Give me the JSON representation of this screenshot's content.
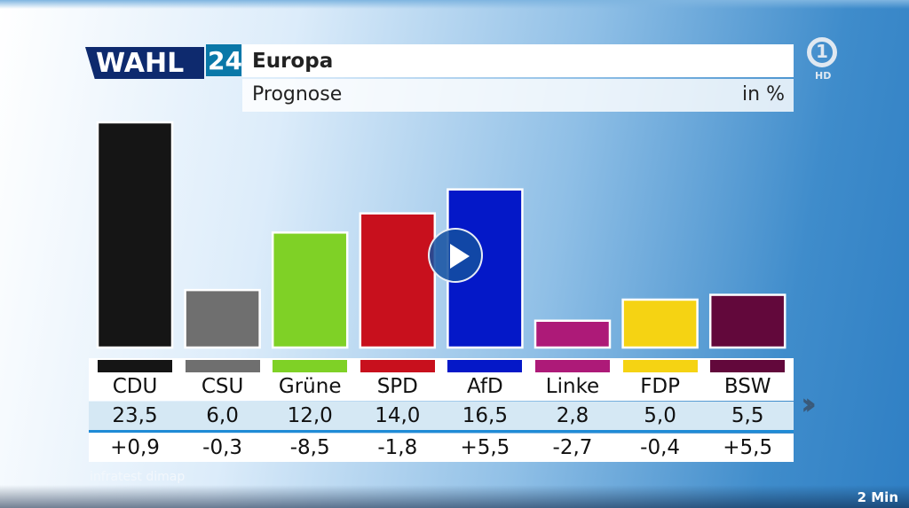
{
  "header": {
    "logo_text": "WAHL",
    "logo_number": "24",
    "title": "Europa",
    "subtitle": "Prognose",
    "unit": "in %"
  },
  "station": {
    "logo": "1",
    "hd": "HD"
  },
  "source": "infratest dimap",
  "video": {
    "duration": "2 Min",
    "play_icon": "play-icon",
    "next_icon": "double-chevron-right-icon"
  },
  "chart_data": {
    "type": "bar",
    "title": "Europa",
    "subtitle": "Prognose",
    "unit": "in %",
    "categories": [
      "CDU",
      "CSU",
      "Grüne",
      "SPD",
      "AfD",
      "Linke",
      "FDP",
      "BSW"
    ],
    "values": [
      23.5,
      6.0,
      12.0,
      14.0,
      16.5,
      2.8,
      5.0,
      5.5
    ],
    "value_labels": [
      "23,5",
      "6,0",
      "12,0",
      "14,0",
      "16,5",
      "2,8",
      "5,0",
      "5,5"
    ],
    "changes": [
      "+0,9",
      "-0,3",
      "-8,5",
      "-1,8",
      "+5,5",
      "-2,7",
      "-0,4",
      "+5,5"
    ],
    "colors": [
      "#151515",
      "#6f6f6f",
      "#7fd126",
      "#c8101d",
      "#0418c8",
      "#ad1a78",
      "#f5d313",
      "#62083b"
    ],
    "ylim": [
      0,
      24
    ],
    "grid": false
  }
}
